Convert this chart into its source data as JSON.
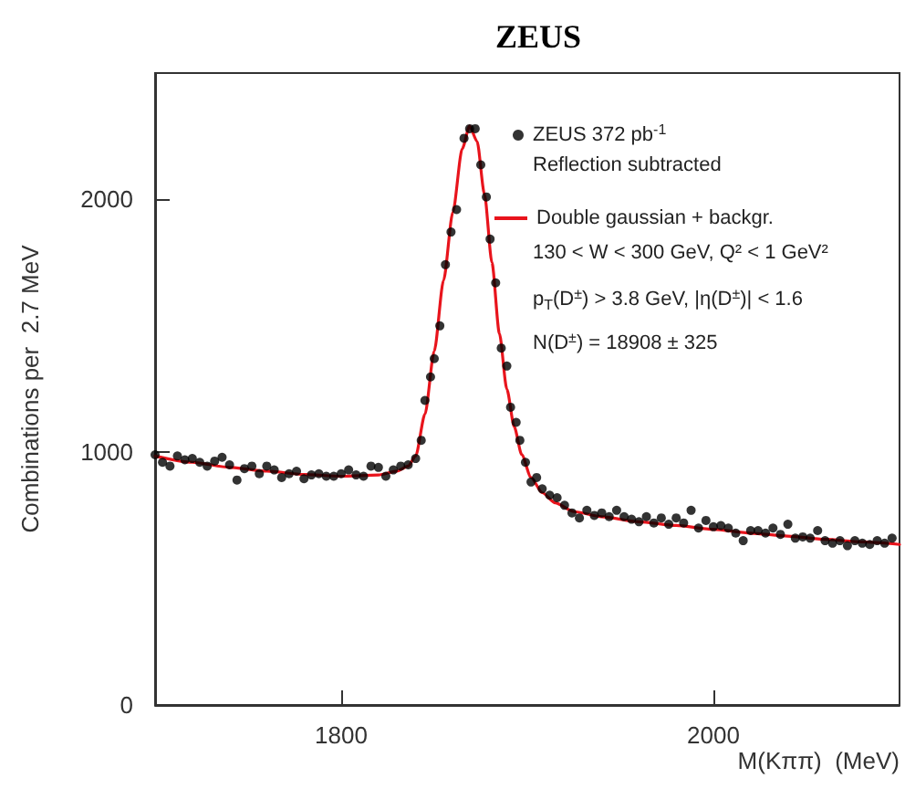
{
  "chart_data": {
    "type": "scatter",
    "title": "ZEUS",
    "xlabel": "M(Kππ)  (MeV)",
    "ylabel": "Combinations per  2.7 MeV",
    "annotations": [
      "Reflection subtracted",
      "130 < W < 300 GeV, Q² < 1 GeV²",
      "p$_{T}$(D$^{±}$) > 3.8 GeV, |η(D$^{±}$)| < 1.6",
      "N(D$^{±}$) = 18908 ± 325"
    ],
    "xlim": [
      1700,
      2100
    ],
    "xticks": [
      1800,
      2000
    ],
    "ylim": [
      0,
      2500
    ],
    "yticks": [
      0,
      1000,
      2000
    ],
    "legend": "top right",
    "series": [
      {
        "name": "ZEUS 372 pb$^{-1}$",
        "type": "scatter",
        "marker": "circle",
        "color": "#000000",
        "x": [
          1700,
          1704,
          1708,
          1712,
          1716,
          1720,
          1724,
          1728,
          1732,
          1736,
          1740,
          1744,
          1748,
          1752,
          1756,
          1760,
          1764,
          1768,
          1772,
          1776,
          1780,
          1784,
          1788,
          1792,
          1796,
          1800,
          1804,
          1808,
          1812,
          1816,
          1820,
          1824,
          1828,
          1832,
          1836,
          1840,
          1843,
          1845,
          1848,
          1850,
          1853,
          1856,
          1859,
          1862,
          1866,
          1869,
          1872,
          1875,
          1878,
          1880,
          1883,
          1886,
          1889,
          1891,
          1894,
          1896,
          1899,
          1902,
          1905,
          1908,
          1912,
          1916,
          1920,
          1924,
          1928,
          1932,
          1936,
          1940,
          1944,
          1948,
          1952,
          1956,
          1960,
          1964,
          1968,
          1972,
          1976,
          1980,
          1984,
          1988,
          1992,
          1996,
          2000,
          2004,
          2008,
          2012,
          2016,
          2020,
          2024,
          2028,
          2032,
          2036,
          2040,
          2044,
          2048,
          2052,
          2056,
          2060,
          2064,
          2068,
          2072,
          2076,
          2080,
          2084,
          2088,
          2092,
          2096
        ],
        "values": [
          990,
          960,
          945,
          985,
          970,
          975,
          960,
          945,
          965,
          980,
          950,
          890,
          935,
          945,
          915,
          945,
          930,
          900,
          915,
          925,
          895,
          910,
          915,
          905,
          905,
          915,
          930,
          910,
          905,
          945,
          940,
          905,
          930,
          945,
          950,
          975,
          1047,
          1205,
          1298,
          1370,
          1500,
          1742,
          1871,
          1960,
          2242,
          2280,
          2280,
          2137,
          2010,
          1843,
          1670,
          1412,
          1341,
          1178,
          1118,
          1047,
          960,
          882,
          900,
          855,
          830,
          820,
          790,
          760,
          740,
          770,
          750,
          760,
          745,
          770,
          745,
          735,
          725,
          745,
          720,
          740,
          715,
          740,
          720,
          770,
          700,
          730,
          705,
          710,
          700,
          680,
          650,
          690,
          690,
          680,
          700,
          675,
          715,
          660,
          665,
          660,
          690,
          650,
          640,
          650,
          630,
          650,
          640,
          635,
          650,
          640,
          660
        ]
      },
      {
        "name": "Double gaussian + backgr.",
        "type": "line",
        "marker": "none",
        "line_style": "solid",
        "color": "#e8141c",
        "x": [
          1700,
          1720,
          1740,
          1760,
          1780,
          1800,
          1820,
          1830,
          1836,
          1840,
          1845,
          1850,
          1855,
          1860,
          1865,
          1869,
          1873,
          1877,
          1881,
          1885,
          1889,
          1893,
          1897,
          1902,
          1908,
          1915,
          1925,
          1940,
          1960,
          1980,
          2000,
          2020,
          2040,
          2060,
          2080,
          2100
        ],
        "values": [
          985,
          960,
          940,
          925,
          912,
          905,
          910,
          925,
          945,
          985,
          1150,
          1400,
          1680,
          1950,
          2200,
          2290,
          2230,
          2020,
          1750,
          1470,
          1250,
          1100,
          990,
          900,
          840,
          800,
          765,
          745,
          725,
          710,
          695,
          680,
          668,
          655,
          645,
          635
        ]
      }
    ]
  }
}
